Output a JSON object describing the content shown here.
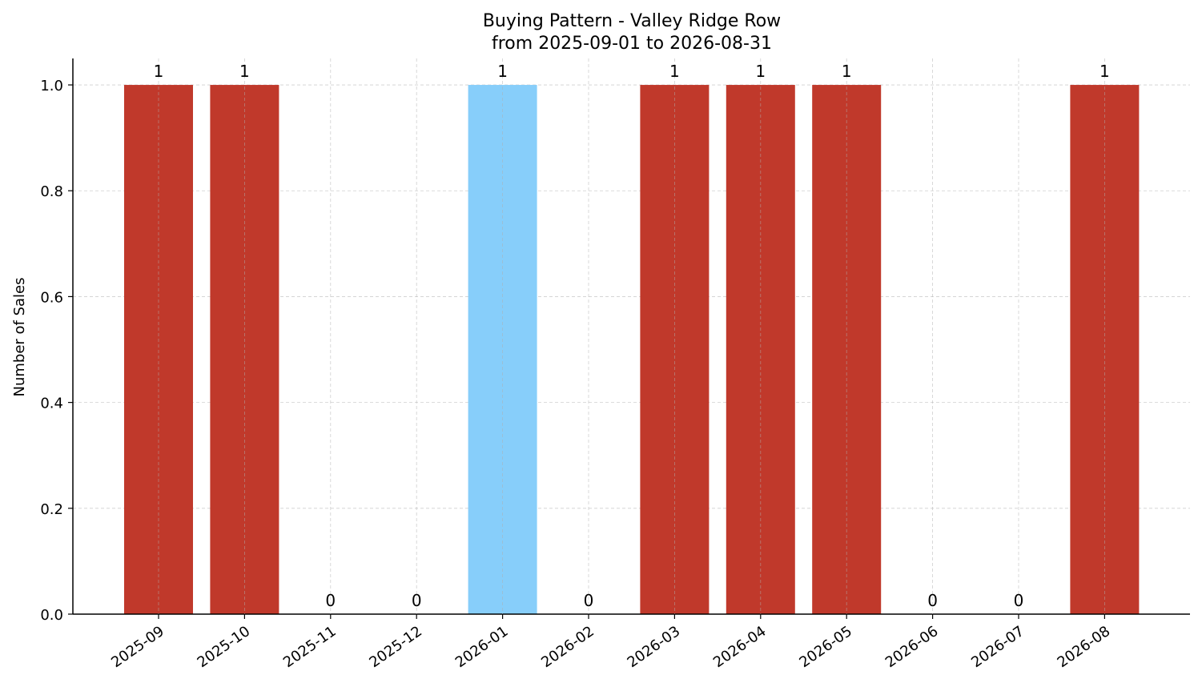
{
  "chart_data": {
    "type": "bar",
    "title": "Buying Pattern - Valley Ridge Row",
    "subtitle": "from 2025-09-01 to 2026-08-31",
    "xlabel": "",
    "ylabel": "Number of Sales",
    "categories": [
      "2025-09",
      "2025-10",
      "2025-11",
      "2025-12",
      "2026-01",
      "2026-02",
      "2026-03",
      "2026-04",
      "2026-05",
      "2026-06",
      "2026-07",
      "2026-08"
    ],
    "values": [
      1,
      1,
      0,
      0,
      1,
      0,
      1,
      1,
      1,
      0,
      0,
      1
    ],
    "bar_colors": [
      "#c0392b",
      "#c0392b",
      "#c0392b",
      "#c0392b",
      "#87cefa",
      "#c0392b",
      "#c0392b",
      "#c0392b",
      "#c0392b",
      "#c0392b",
      "#c0392b",
      "#c0392b"
    ],
    "ylim": [
      0,
      1.05
    ],
    "yticks": [
      0.0,
      0.2,
      0.4,
      0.6,
      0.8,
      1.0
    ],
    "ytick_labels": [
      "0.0",
      "0.2",
      "0.4",
      "0.6",
      "0.8",
      "1.0"
    ],
    "grid": true,
    "legend": "none"
  }
}
